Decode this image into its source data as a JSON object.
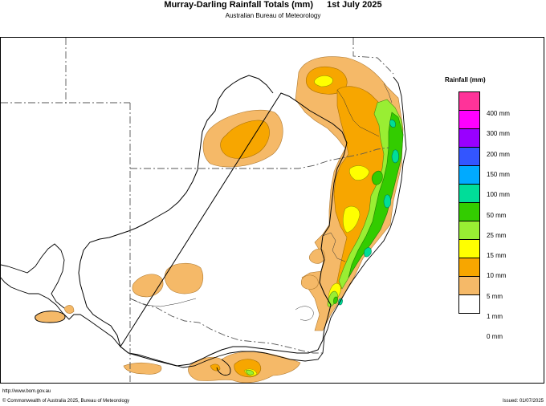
{
  "header": {
    "title": "Murray-Darling Rainfall Totals (mm)",
    "date": "1st July 2025",
    "subtitle": "Australian Bureau of Meteorology"
  },
  "legend": {
    "title": "Rainfall (mm)",
    "bins": [
      {
        "label": "400 mm",
        "color": "#ff3399"
      },
      {
        "label": "300 mm",
        "color": "#ff00ff"
      },
      {
        "label": "200 mm",
        "color": "#9900ff"
      },
      {
        "label": "150 mm",
        "color": "#3355ff"
      },
      {
        "label": "100 mm",
        "color": "#00aaff"
      },
      {
        "label": "50 mm",
        "color": "#00dd99"
      },
      {
        "label": "25 mm",
        "color": "#33cc00"
      },
      {
        "label": "15 mm",
        "color": "#99ee33"
      },
      {
        "label": "10 mm",
        "color": "#ffff00"
      },
      {
        "label": "5 mm",
        "color": "#f7a600"
      },
      {
        "label": "1 mm",
        "color": "#f5b968"
      },
      {
        "label": "0 mm",
        "color": "#ffffff"
      }
    ]
  },
  "footer": {
    "url": "http://www.bom.gov.au",
    "copyright": "© Commonwealth of Australia 2025, Bureau of Meteorology",
    "issued": "Issued: 01/07/2025"
  }
}
